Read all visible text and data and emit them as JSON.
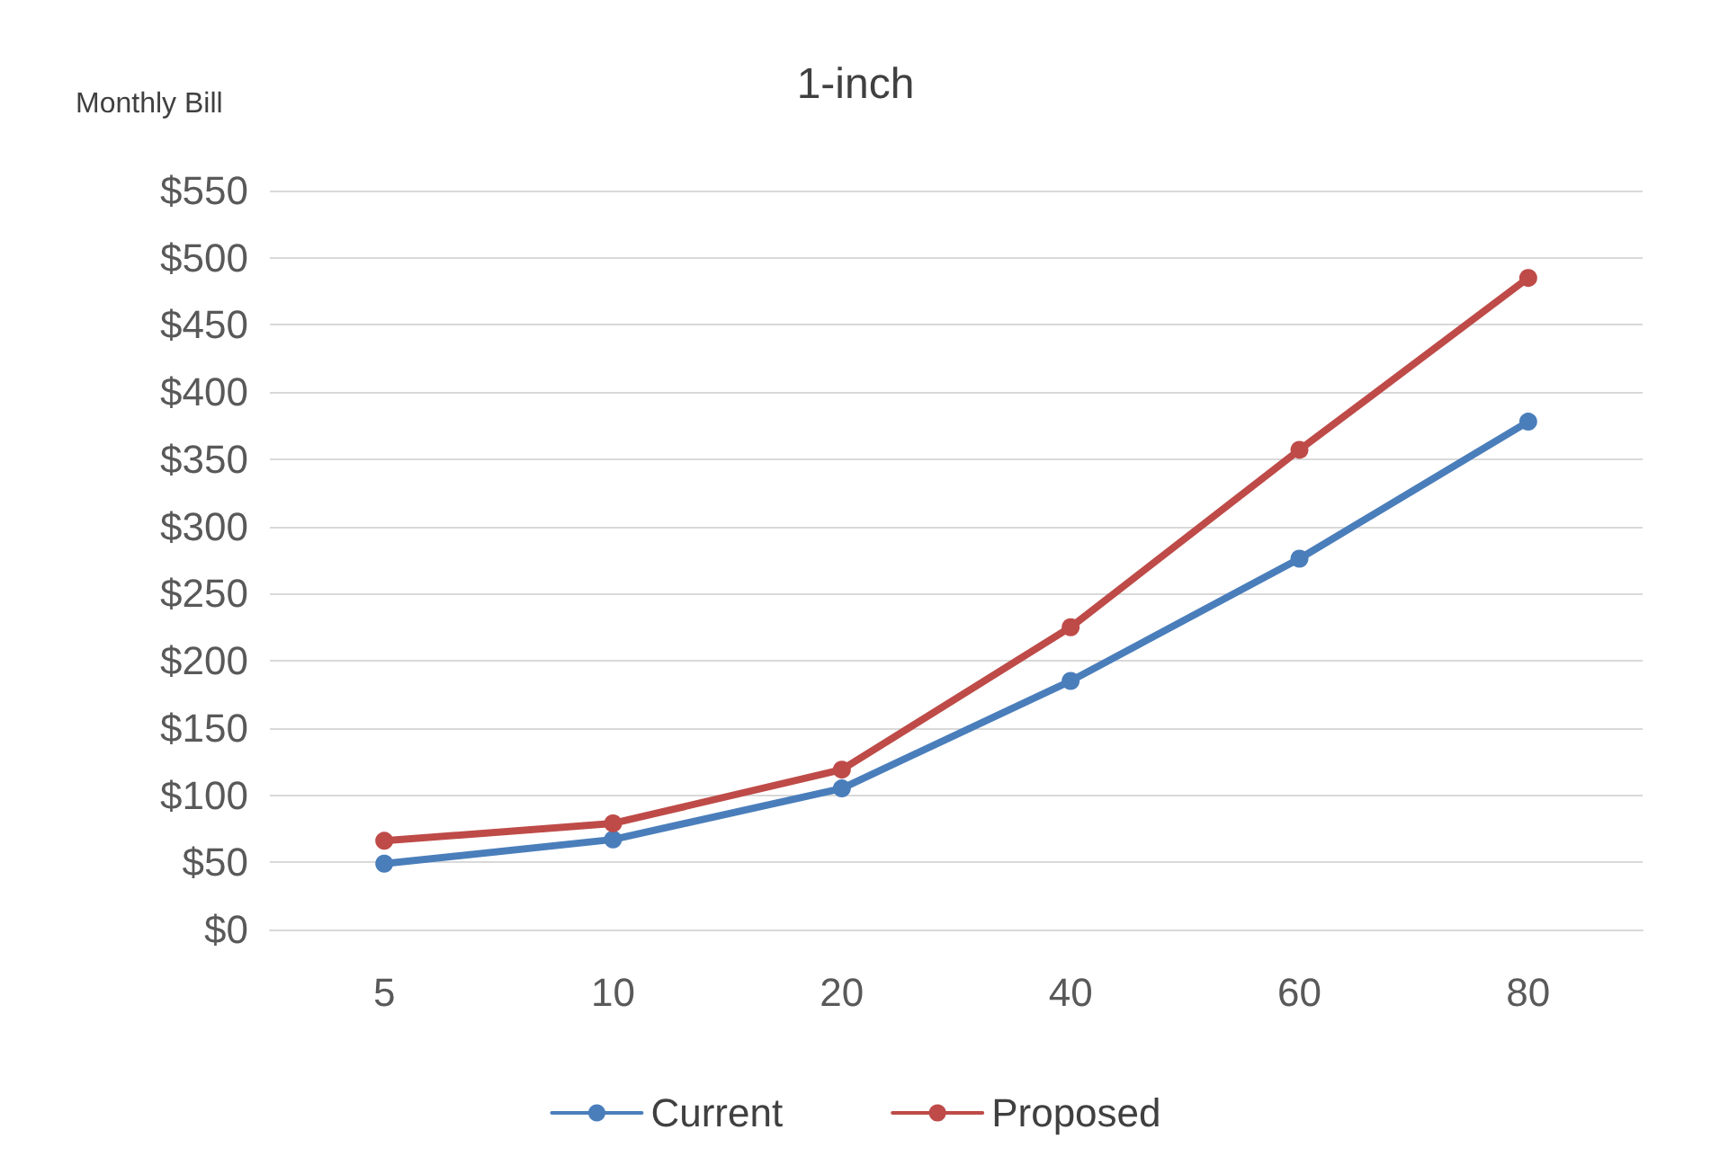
{
  "chart_data": {
    "type": "line",
    "title": "1-inch",
    "ylabel": "Monthly Bill",
    "categories": [
      "5",
      "10",
      "20",
      "40",
      "60",
      "80"
    ],
    "series": [
      {
        "name": "Current",
        "color": "#4a7ebb",
        "values": [
          49,
          67,
          105,
          185,
          276,
          378
        ]
      },
      {
        "name": "Proposed",
        "color": "#be4b48",
        "values": [
          66,
          79,
          119,
          225,
          357,
          485
        ]
      }
    ],
    "ylim": [
      0,
      550
    ],
    "yticks": [
      {
        "value": 0,
        "label": "$0"
      },
      {
        "value": 50,
        "label": "$50"
      },
      {
        "value": 100,
        "label": "$100"
      },
      {
        "value": 150,
        "label": "$150"
      },
      {
        "value": 200,
        "label": "$200"
      },
      {
        "value": 250,
        "label": "$250"
      },
      {
        "value": 300,
        "label": "$300"
      },
      {
        "value": 350,
        "label": "$350"
      },
      {
        "value": 400,
        "label": "$400"
      },
      {
        "value": 450,
        "label": "$450"
      },
      {
        "value": 500,
        "label": "$500"
      },
      {
        "value": 550,
        "label": "$550"
      }
    ],
    "grid": "y",
    "legend": "bottom",
    "marker": "circle",
    "line_style": "solid"
  }
}
